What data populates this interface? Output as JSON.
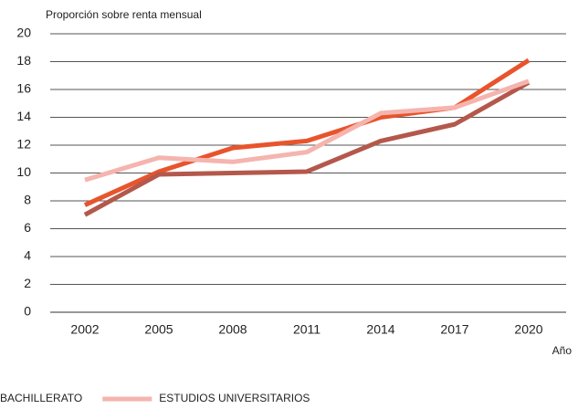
{
  "chart_data": {
    "type": "line",
    "y_axis_label": "Proporción sobre renta mensual",
    "x_axis_label": "Año",
    "categories": [
      "2002",
      "2005",
      "2008",
      "2011",
      "2014",
      "2017",
      "2020"
    ],
    "series": [
      {
        "color": "#e8542c",
        "values": [
          7.7,
          10.1,
          11.8,
          12.3,
          14.0,
          14.7,
          18.1
        ]
      },
      {
        "name": "BACHILLERATO",
        "color": "#b4584b",
        "values": [
          7.0,
          9.9,
          10.0,
          10.1,
          12.3,
          13.5,
          16.5
        ]
      },
      {
        "name": "ESTUDIOS UNIVERSITARIOS",
        "color": "#f5b4ae",
        "values": [
          9.5,
          11.1,
          10.8,
          11.5,
          14.3,
          14.7,
          16.6
        ]
      }
    ],
    "ylim": [
      0,
      20
    ],
    "yticks": [
      0,
      2,
      4,
      6,
      8,
      10,
      12,
      14,
      16,
      18,
      20
    ],
    "grid": true
  }
}
